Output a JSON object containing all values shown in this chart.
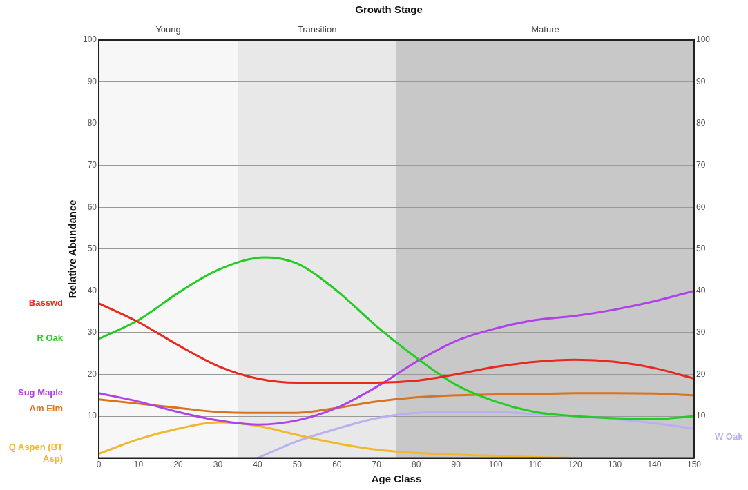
{
  "chart_data": {
    "type": "line",
    "title": "Growth Stage",
    "xlabel": "Age Class",
    "ylabel": "Relative Abundance",
    "xlim": [
      0,
      150
    ],
    "xticks": [
      0,
      10,
      20,
      30,
      40,
      50,
      60,
      70,
      80,
      90,
      100,
      110,
      120,
      130,
      140,
      150
    ],
    "ylim": [
      0,
      100
    ],
    "yticks": [
      10,
      20,
      30,
      40,
      50,
      60,
      70,
      80,
      90,
      100
    ],
    "y2lim": [
      0,
      100
    ],
    "y2ticks": [
      10,
      20,
      30,
      40,
      50,
      60,
      70,
      80,
      90,
      100
    ],
    "grid": "y",
    "legend": false,
    "marker": "none",
    "line_style": "solid",
    "bands": [
      {
        "axis": "x",
        "from": 0,
        "to": 35,
        "label": "Young",
        "color": "#f7f7f7"
      },
      {
        "axis": "x",
        "from": 35,
        "to": 75,
        "label": "Transition",
        "color": "#e8e8e8"
      },
      {
        "axis": "x",
        "from": 75,
        "to": 150,
        "label": "Mature",
        "color": "#c8c8c8"
      }
    ],
    "series": [
      {
        "name": "Basswd",
        "color": "#e8281e",
        "x": [
          0,
          10,
          20,
          30,
          40,
          50,
          60,
          70,
          80,
          90,
          100,
          110,
          120,
          130,
          140,
          150
        ],
        "values": [
          37,
          32.5,
          27,
          22,
          19,
          18,
          18,
          18,
          18.5,
          20,
          21.8,
          23,
          23.5,
          23,
          21.5,
          19
        ]
      },
      {
        "name": "R Oak",
        "color": "#22cc22",
        "x": [
          0,
          10,
          20,
          30,
          42,
          50,
          60,
          70,
          80,
          90,
          100,
          110,
          120,
          130,
          140,
          150
        ],
        "values": [
          28.5,
          33,
          39.5,
          45,
          48,
          46.5,
          40,
          31.5,
          24,
          17.5,
          13.5,
          11,
          10,
          9.5,
          9.3,
          10
        ]
      },
      {
        "name": "Sug Maple",
        "color": "#b040e8",
        "x": [
          0,
          10,
          20,
          30,
          40,
          50,
          60,
          70,
          80,
          90,
          100,
          110,
          120,
          130,
          140,
          150
        ],
        "values": [
          15.5,
          13.5,
          11,
          9,
          8,
          9,
          12,
          17,
          23,
          28,
          31,
          33,
          34,
          35.5,
          37.5,
          40
        ]
      },
      {
        "name": "Am Elm",
        "color": "#d9731e",
        "x": [
          0,
          10,
          20,
          30,
          40,
          50,
          60,
          70,
          80,
          90,
          100,
          110,
          120,
          130,
          140,
          150
        ],
        "values": [
          14,
          13,
          12,
          11,
          10.8,
          10.8,
          12,
          13.5,
          14.5,
          15,
          15.2,
          15.3,
          15.5,
          15.5,
          15.4,
          15
        ]
      },
      {
        "name": "Q Aspen (BT Asp)",
        "color": "#f0b830",
        "x": [
          0,
          10,
          20,
          30,
          40,
          50,
          60,
          70,
          80,
          90,
          100,
          110,
          120
        ],
        "values": [
          1,
          4.5,
          7,
          8.5,
          7.7,
          5.5,
          3.5,
          2,
          1.2,
          0.8,
          0.5,
          0.2,
          0
        ]
      },
      {
        "name": "W Oak",
        "color": "#b8b0f0",
        "x": [
          40,
          50,
          60,
          70,
          80,
          90,
          100,
          110,
          120,
          130,
          140,
          150
        ],
        "values": [
          0,
          4,
          7,
          9.5,
          10.8,
          11,
          11,
          10.5,
          10,
          9.3,
          8.3,
          7
        ]
      }
    ]
  }
}
